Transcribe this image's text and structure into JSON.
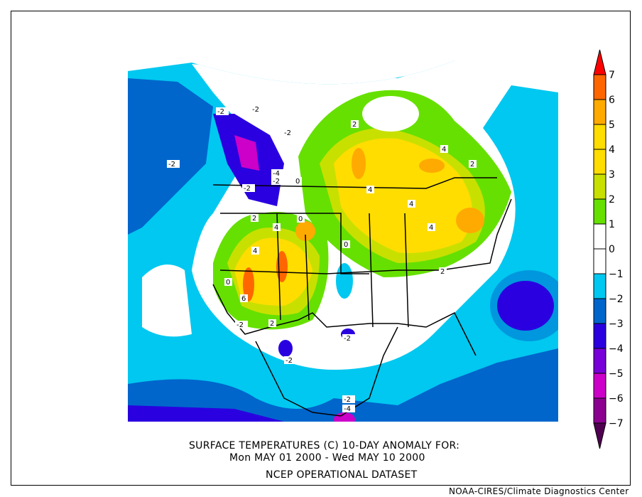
{
  "title": {
    "line1": "SURFACE TEMPERATURES (C)   10-DAY ANOMALY FOR:",
    "line2": "Mon MAY 01 2000 - Wed MAY 10 2000",
    "line3": "NCEP OPERATIONAL DATASET"
  },
  "credit": "NOAA-CIRES/Climate Diagnostics Center",
  "legend": {
    "labels": [
      "7",
      "6",
      "5",
      "4",
      "3",
      "2",
      "1",
      "0",
      "-1",
      "-2",
      "-3",
      "-4",
      "-5",
      "-6",
      "-7"
    ],
    "colors": {
      "above7": "#ff0000",
      "6to7": "#ff6600",
      "5to6": "#ffaa00",
      "4to5": "#ffdd00",
      "3to4": "#ffdd00",
      "2to3": "#c8e000",
      "1to2": "#66e000",
      "0to1": "#ffffff",
      "m1to0": "#ffffff",
      "m2tom1": "#00c8f0",
      "m3tom2": "#0066cc",
      "m4tom3": "#2a00e0",
      "m5tom4": "#7800d8",
      "m6tom5": "#cc00c8",
      "m7tom6": "#8c0090",
      "below_m7": "#500050"
    }
  },
  "contour_labels": [
    "-2",
    "-2",
    "-2",
    "-2",
    "-2",
    "-4",
    "-2",
    "0",
    "0",
    "2",
    "4",
    "2",
    "4",
    "4",
    "4",
    "4",
    "4",
    "6",
    "2",
    "2",
    "0",
    "-2",
    "-2",
    "-2",
    "-4",
    "-2",
    "2",
    "0"
  ]
}
